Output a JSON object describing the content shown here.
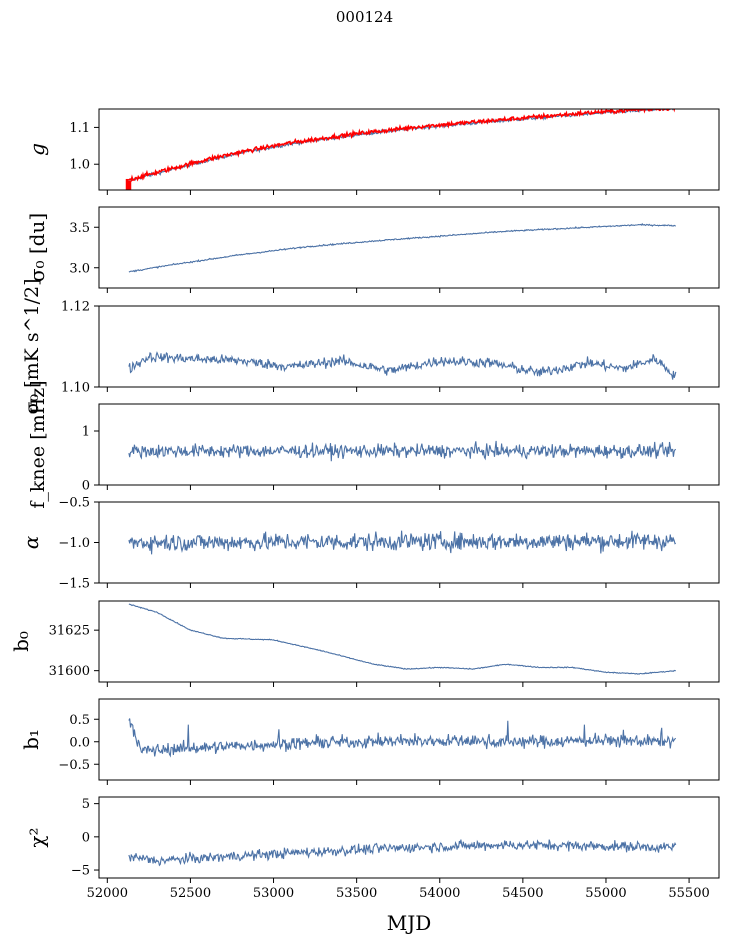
{
  "figure": {
    "suptitle": "000124",
    "xlabel": "MJD"
  },
  "chart_data": {
    "type": "line",
    "title": "000124",
    "xlabel": "MJD",
    "xlim": [
      51950,
      55680
    ],
    "xticks": [
      52000,
      52500,
      53000,
      53500,
      54000,
      54500,
      55000,
      55500
    ],
    "line_color": "#4c72a6",
    "highlight_color": "#ff0000",
    "x_start": 52130,
    "x_end": 55420,
    "panels": [
      {
        "id": "g",
        "ylabel": "g",
        "ylim": [
          0.93,
          1.15
        ],
        "yticks": [
          1.0,
          1.1
        ],
        "ytick_labels": [
          "1.0",
          "1.1"
        ],
        "series": [
          {
            "name": "g",
            "color": "#4c72a6",
            "noise": 0.003,
            "x": [
              52130,
              52300,
              52600,
              52800,
              53100,
              53500,
              53900,
              54300,
              54700,
              55000,
              55300,
              55420
            ],
            "y": [
              0.955,
              0.975,
              1.01,
              1.03,
              1.055,
              1.08,
              1.1,
              1.115,
              1.13,
              1.14,
              1.148,
              1.15
            ]
          },
          {
            "name": "g_red",
            "color": "#ff0000",
            "noise": 0.004,
            "x": [
              52130,
              52300,
              52600,
              52800,
              53100,
              53500,
              53900,
              54300,
              54700,
              55000,
              55300,
              55420
            ],
            "y": [
              0.958,
              0.978,
              1.013,
              1.033,
              1.058,
              1.083,
              1.103,
              1.118,
              1.133,
              1.143,
              1.151,
              1.153
            ]
          }
        ],
        "spikes": [
          {
            "x": 52120,
            "y0": 0.93,
            "y1": 0.96
          },
          {
            "x": 52135,
            "y0": 0.93,
            "y1": 0.955
          }
        ]
      },
      {
        "id": "sigma0_du",
        "ylabel": "σ₀ [du]",
        "ylim": [
          2.75,
          3.75
        ],
        "yticks": [
          3.0,
          3.5
        ],
        "ytick_labels": [
          "3.0",
          "3.5"
        ],
        "series": [
          {
            "name": "sigma0",
            "color": "#4c72a6",
            "noise": 0.006,
            "x": [
              52130,
              52400,
              52800,
              53200,
              53600,
              54000,
              54400,
              54800,
              55200,
              55420
            ],
            "y": [
              2.95,
              3.04,
              3.16,
              3.26,
              3.33,
              3.39,
              3.45,
              3.49,
              3.53,
              3.52
            ]
          }
        ]
      },
      {
        "id": "sigma0_mk",
        "ylabel": "σ₀ [mK s^1/2]",
        "ylim": [
          1.1,
          1.12
        ],
        "yticks": [
          1.1,
          1.12
        ],
        "ytick_labels": [
          "1.10",
          "1.12"
        ],
        "series": [
          {
            "name": "sigma0_mk",
            "color": "#4c72a6",
            "noise": 0.0009,
            "x": [
              52130,
              52250,
              52500,
              52800,
              53100,
              53400,
              53700,
              54000,
              54300,
              54600,
              54900,
              55100,
              55300,
              55420
            ],
            "y": [
              1.1045,
              1.1075,
              1.107,
              1.1065,
              1.105,
              1.1065,
              1.104,
              1.1065,
              1.106,
              1.1035,
              1.106,
              1.1045,
              1.107,
              1.1025
            ]
          }
        ]
      },
      {
        "id": "fknee",
        "ylabel": "f_knee [mHz]",
        "ylim": [
          0,
          1.5
        ],
        "yticks": [
          0,
          1
        ],
        "ytick_labels": [
          "0",
          "1"
        ],
        "series": [
          {
            "name": "fknee",
            "color": "#4c72a6",
            "noise": 0.09,
            "x": [
              52130,
              55420
            ],
            "y": [
              0.63,
              0.63
            ]
          }
        ]
      },
      {
        "id": "alpha",
        "ylabel": "α",
        "ylim": [
          -1.5,
          -0.5
        ],
        "yticks": [
          -1.5,
          -1.0,
          -0.5
        ],
        "ytick_labels": [
          "−1.5",
          "−1.0",
          "−0.5"
        ],
        "series": [
          {
            "name": "alpha",
            "color": "#4c72a6",
            "noise": 0.08,
            "x": [
              52130,
              55420
            ],
            "y": [
              -1.0,
              -0.98
            ]
          }
        ]
      },
      {
        "id": "b0",
        "ylabel": "b₀",
        "ylim": [
          31593,
          31643
        ],
        "yticks": [
          31600,
          31625
        ],
        "ytick_labels": [
          "31600",
          "31625"
        ],
        "series": [
          {
            "name": "b0",
            "color": "#4c72a6",
            "noise": 0.2,
            "x": [
              52130,
              52300,
              52500,
              52700,
              53000,
              53300,
              53600,
              53800,
              54000,
              54200,
              54400,
              54600,
              54800,
              55000,
              55200,
              55420
            ],
            "y": [
              31641,
              31636,
              31625,
              31620,
              31619,
              31612,
              31604,
              31601,
              31602,
              31601,
              31604,
              31602,
              31602,
              31599,
              31598,
              31600
            ]
          }
        ]
      },
      {
        "id": "b1",
        "ylabel": "b₁",
        "ylim": [
          -0.85,
          0.95
        ],
        "yticks": [
          -0.5,
          0.0,
          0.5
        ],
        "ytick_labels": [
          "−0.5",
          "0.0",
          "0.5"
        ],
        "series": [
          {
            "name": "b1",
            "color": "#4c72a6",
            "noise": 0.1,
            "x": [
              52130,
              52200,
              52600,
              53000,
              53500,
              54000,
              54500,
              55000,
              55420
            ],
            "y": [
              0.55,
              -0.2,
              -0.12,
              -0.05,
              0.0,
              0.02,
              0.0,
              0.03,
              0.0
            ]
          }
        ]
      },
      {
        "id": "chi2",
        "ylabel": "χ²",
        "ylim": [
          -6.2,
          6
        ],
        "yticks": [
          -5,
          0,
          5
        ],
        "ytick_labels": [
          "−5",
          "0",
          "5"
        ],
        "series": [
          {
            "name": "chi2",
            "color": "#4c72a6",
            "noise": 0.55,
            "x": [
              52130,
              52300,
              52700,
              53200,
              53800,
              54400,
              55000,
              55420
            ],
            "y": [
              -3.0,
              -3.6,
              -3.0,
              -2.3,
              -1.6,
              -1.2,
              -1.4,
              -1.6
            ]
          }
        ]
      }
    ]
  }
}
